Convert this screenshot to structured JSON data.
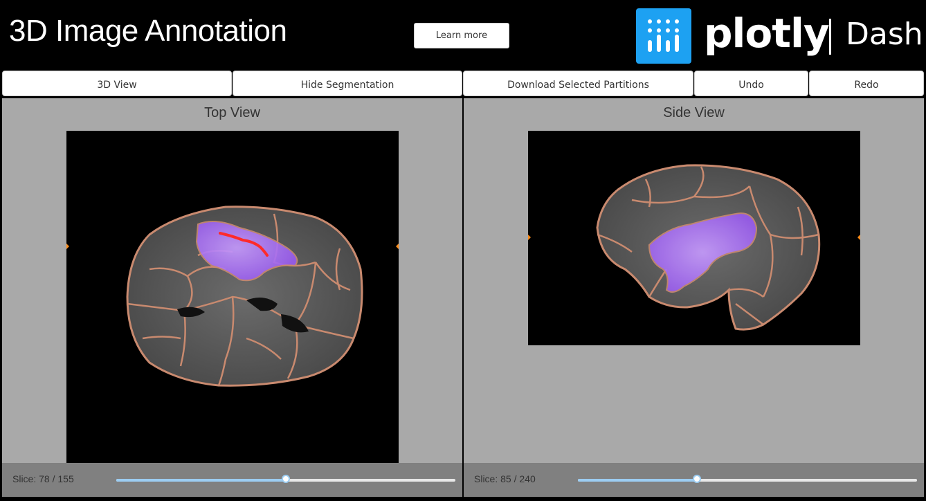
{
  "header": {
    "title": "3D Image Annotation",
    "learn_more_label": "Learn more",
    "logo_word": "plotly",
    "logo_product": "Dash",
    "logo_color": "#1da1f2"
  },
  "toolbar": {
    "view3d_label": "3D View",
    "hide_segmentation_label": "Hide Segmentation",
    "download_label": "Download Selected Partitions",
    "undo_label": "Undo",
    "redo_label": "Redo"
  },
  "top_panel": {
    "title": "Top View",
    "slice_label": "Slice: 78 / 155",
    "slice_current": 78,
    "slice_total": 155
  },
  "side_panel": {
    "title": "Side View",
    "slice_label": "Slice: 85 / 240",
    "slice_current": 85,
    "slice_total": 240
  },
  "colors": {
    "panel_bg": "#a9a9a9",
    "segment_outline": "#c98a6f",
    "selection_fill": "#a066ff",
    "annotation_stroke": "#ff2a2a",
    "slider_accent": "#9ccdf2"
  }
}
